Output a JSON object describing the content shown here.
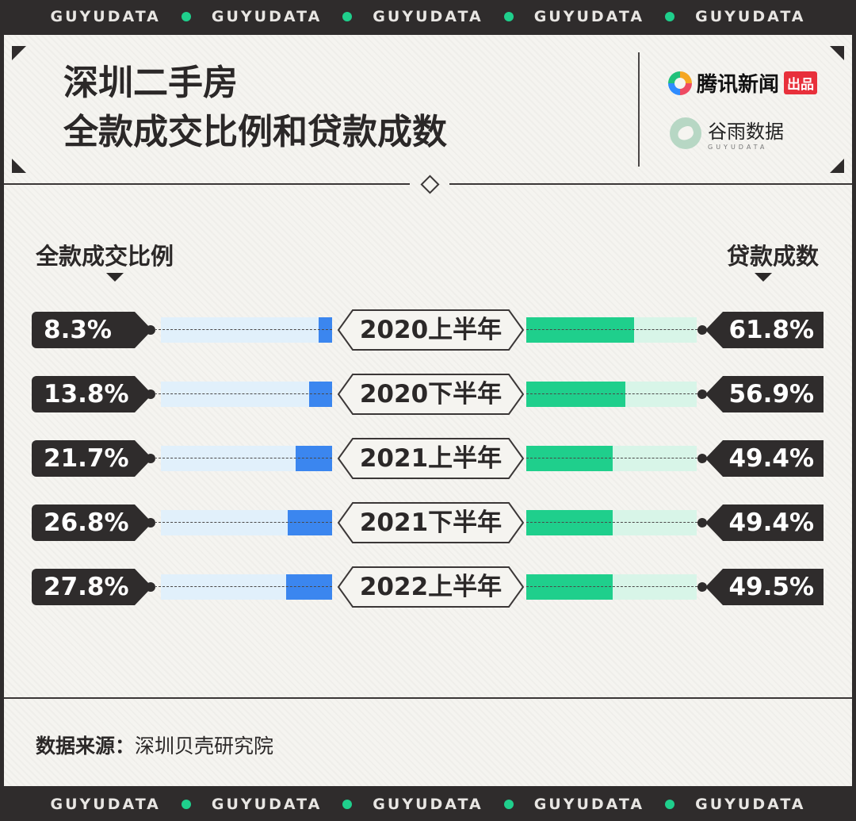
{
  "banner": {
    "items": [
      "GUYUDATA",
      "GUYUDATA",
      "GUYUDATA",
      "GUYUDATA",
      "GUYUDATA"
    ]
  },
  "header": {
    "title_line1": "深圳二手房",
    "title_line2": "全款成交比例和贷款成数"
  },
  "logos": {
    "tencent_name": "腾讯新闻",
    "tencent_badge": "出品",
    "guyu_name": "谷雨数据",
    "guyu_sub": "GUYUDATA"
  },
  "colors": {
    "left_bar": "#3b86ef",
    "left_track": "#e1f0fb",
    "right_bar": "#1fcf8c",
    "right_track": "#d8f5e8",
    "dark": "#2f2c2c"
  },
  "chart_data": {
    "type": "bar",
    "left_label": "全款成交比例",
    "right_label": "贷款成数",
    "categories": [
      "2020上半年",
      "2020下半年",
      "2021上半年",
      "2021下半年",
      "2022上半年"
    ],
    "series": [
      {
        "name": "全款成交比例",
        "values": [
          8.3,
          13.8,
          21.7,
          26.8,
          27.8
        ],
        "labels": [
          "8.3%",
          "13.8%",
          "21.7%",
          "26.8%",
          "27.8%"
        ]
      },
      {
        "name": "贷款成数",
        "values": [
          61.8,
          56.9,
          49.4,
          49.4,
          49.5
        ],
        "labels": [
          "61.8%",
          "56.9%",
          "49.4%",
          "49.4%",
          "49.5%"
        ]
      }
    ]
  },
  "footer": {
    "source_label": "数据来源：",
    "source_value": "深圳贝壳研究院"
  }
}
